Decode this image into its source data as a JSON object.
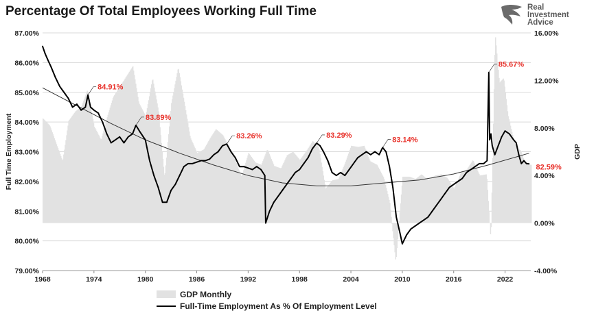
{
  "title": "Percentage Of Total Employees Working Full Time",
  "logo": {
    "line1": "Real",
    "line2": "Investment",
    "line3": "Advice"
  },
  "chart_data": {
    "type": "line",
    "title": "Percentage Of Total Employees Working Full Time",
    "ylabel": "Full Time Employment",
    "y2label": "GDP",
    "xlim": [
      1968,
      2025
    ],
    "ylim": [
      79,
      87
    ],
    "y2lim": [
      -4,
      16
    ],
    "x_ticks": [
      "1968",
      "1974",
      "1980",
      "1986",
      "1992",
      "1998",
      "2004",
      "2010",
      "2016",
      "2022"
    ],
    "y_ticks": [
      "79.00%",
      "80.00%",
      "81.00%",
      "82.00%",
      "83.00%",
      "84.00%",
      "85.00%",
      "86.00%",
      "87.00%"
    ],
    "y2_ticks": [
      "-4.00%",
      "0.00%",
      "4.00%",
      "8.00%",
      "12.00%",
      "16.00%"
    ],
    "legend": {
      "placement": "bottom",
      "entries": [
        "GDP Monthly",
        "Full-Time Employment As % Of Employment Level"
      ]
    },
    "grid": true,
    "series": [
      {
        "name": "Full-Time Employment As % Of Employment Level",
        "axis": "left",
        "color": "#000000",
        "x": [
          1968.0,
          1968.3,
          1968.6,
          1969.0,
          1969.5,
          1970.0,
          1970.5,
          1971.0,
          1971.5,
          1972.0,
          1972.5,
          1973.0,
          1973.3,
          1973.6,
          1974.0,
          1974.5,
          1975.0,
          1975.5,
          1976.0,
          1976.5,
          1977.0,
          1977.5,
          1978.0,
          1978.5,
          1978.9,
          1979.3,
          1980.0,
          1980.5,
          1981.0,
          1981.5,
          1982.0,
          1982.5,
          1983.0,
          1983.5,
          1984.0,
          1984.5,
          1985.0,
          1985.5,
          1986.0,
          1986.5,
          1987.0,
          1987.5,
          1988.0,
          1988.5,
          1989.0,
          1989.5,
          1990.0,
          1990.5,
          1991.0,
          1991.5,
          1992.0,
          1992.5,
          1993.0,
          1993.5,
          1993.95,
          1994.05,
          1994.5,
          1995.0,
          1995.5,
          1996.0,
          1996.5,
          1997.0,
          1997.5,
          1998.0,
          1998.5,
          1999.0,
          1999.5,
          2000.0,
          2000.4,
          2000.8,
          2001.3,
          2001.8,
          2002.3,
          2002.8,
          2003.3,
          2003.8,
          2004.3,
          2004.8,
          2005.3,
          2005.8,
          2006.3,
          2006.8,
          2007.3,
          2007.7,
          2008.1,
          2008.5,
          2008.9,
          2009.3,
          2009.7,
          2010.0,
          2010.5,
          2011.0,
          2011.5,
          2012.0,
          2012.5,
          2013.0,
          2013.5,
          2014.0,
          2014.5,
          2015.0,
          2015.5,
          2016.0,
          2016.5,
          2017.0,
          2017.5,
          2018.0,
          2018.5,
          2019.0,
          2019.5,
          2019.9,
          2020.1,
          2020.2,
          2020.35,
          2020.5,
          2020.8,
          2021.2,
          2021.6,
          2022.0,
          2022.5,
          2023.0,
          2023.3,
          2023.6,
          2023.9,
          2024.2,
          2024.5,
          2024.8
        ],
        "y": [
          86.55,
          86.3,
          86.1,
          85.85,
          85.5,
          85.2,
          85.0,
          84.8,
          84.5,
          84.6,
          84.4,
          84.5,
          84.91,
          84.5,
          84.4,
          84.3,
          84.0,
          83.6,
          83.3,
          83.4,
          83.5,
          83.3,
          83.5,
          83.6,
          83.89,
          83.7,
          83.4,
          82.7,
          82.2,
          81.8,
          81.3,
          81.3,
          81.7,
          81.9,
          82.2,
          82.5,
          82.6,
          82.6,
          82.65,
          82.7,
          82.7,
          82.75,
          82.9,
          83.0,
          83.2,
          83.26,
          83.0,
          82.8,
          82.5,
          82.5,
          82.45,
          82.4,
          82.5,
          82.4,
          82.2,
          80.6,
          81.0,
          81.3,
          81.5,
          81.7,
          81.9,
          82.1,
          82.3,
          82.4,
          82.6,
          82.8,
          83.1,
          83.29,
          83.2,
          83.0,
          82.7,
          82.3,
          82.2,
          82.3,
          82.2,
          82.4,
          82.6,
          82.8,
          82.9,
          83.0,
          82.9,
          83.0,
          82.9,
          83.14,
          83.0,
          82.5,
          81.8,
          80.8,
          80.3,
          79.9,
          80.2,
          80.4,
          80.5,
          80.6,
          80.7,
          80.8,
          81.0,
          81.2,
          81.4,
          81.6,
          81.8,
          81.9,
          82.0,
          82.1,
          82.3,
          82.4,
          82.5,
          82.6,
          82.6,
          82.7,
          85.67,
          83.4,
          83.6,
          83.2,
          82.9,
          83.2,
          83.5,
          83.7,
          83.6,
          83.4,
          83.3,
          82.9,
          82.6,
          82.7,
          82.6,
          82.59
        ]
      },
      {
        "name": "GDP Monthly",
        "axis": "right",
        "color": "#e2e2e2",
        "x": [
          1968.0,
          1968.8,
          1969.5,
          1970.3,
          1971.0,
          1971.8,
          1972.5,
          1973.2,
          1974.0,
          1974.8,
          1975.5,
          1976.2,
          1977.0,
          1977.8,
          1978.5,
          1979.2,
          1980.0,
          1980.8,
          1981.5,
          1982.2,
          1983.0,
          1983.8,
          1984.5,
          1985.2,
          1986.0,
          1986.8,
          1987.5,
          1988.2,
          1989.0,
          1989.8,
          1990.5,
          1991.2,
          1992.0,
          1992.8,
          1993.5,
          1994.2,
          1995.0,
          1995.8,
          1996.5,
          1997.2,
          1998.0,
          1998.8,
          1999.5,
          2000.2,
          2001.0,
          2001.8,
          2002.5,
          2003.2,
          2004.0,
          2004.8,
          2005.5,
          2006.2,
          2007.0,
          2007.8,
          2008.5,
          2009.2,
          2010.0,
          2010.8,
          2011.5,
          2012.2,
          2013.0,
          2013.8,
          2014.5,
          2015.2,
          2016.0,
          2016.8,
          2017.5,
          2018.2,
          2019.0,
          2019.8,
          2020.3,
          2020.8,
          2021.3,
          2021.8,
          2022.3,
          2022.8,
          2023.3,
          2023.8,
          2024.3,
          2024.8
        ],
        "y": [
          8.8,
          8.2,
          6.8,
          5.2,
          8.6,
          9.4,
          9.8,
          11.2,
          8.1,
          7.0,
          8.9,
          10.6,
          11.5,
          12.4,
          13.2,
          10.1,
          9.0,
          12.2,
          9.4,
          3.8,
          10.1,
          13.1,
          10.2,
          7.2,
          5.9,
          6.2,
          7.1,
          7.9,
          7.4,
          6.3,
          5.2,
          3.9,
          5.9,
          5.1,
          4.9,
          6.2,
          4.8,
          4.6,
          5.7,
          6.0,
          5.3,
          6.1,
          6.9,
          6.4,
          2.9,
          3.6,
          3.7,
          4.9,
          6.5,
          6.4,
          6.5,
          5.2,
          4.9,
          3.8,
          1.7,
          -3.3,
          3.9,
          3.9,
          3.7,
          4.1,
          3.6,
          4.0,
          4.1,
          3.8,
          2.9,
          4.2,
          4.5,
          5.3,
          4.0,
          4.1,
          -1.5,
          15.9,
          11.8,
          12.2,
          9.1,
          7.5,
          6.3,
          6.1,
          5.0,
          4.9
        ]
      },
      {
        "name": "Trend",
        "axis": "left",
        "color": "#333333",
        "x": [
          1968,
          1972,
          1976,
          1980,
          1984,
          1988,
          1992,
          1996,
          2000,
          2004,
          2008,
          2012,
          2016,
          2020,
          2024.8
        ],
        "y": [
          85.15,
          84.55,
          83.95,
          83.4,
          82.95,
          82.55,
          82.2,
          81.95,
          81.85,
          81.85,
          81.95,
          82.05,
          82.25,
          82.55,
          82.95
        ]
      }
    ],
    "annotations": [
      {
        "x": 1973.3,
        "y": 84.91,
        "text": "84.91%"
      },
      {
        "x": 1978.9,
        "y": 83.89,
        "text": "83.89%"
      },
      {
        "x": 1989.5,
        "y": 83.26,
        "text": "83.26%"
      },
      {
        "x": 2000.0,
        "y": 83.29,
        "text": "83.29%"
      },
      {
        "x": 2007.7,
        "y": 83.14,
        "text": "83.14%"
      },
      {
        "x": 2020.1,
        "y": 85.67,
        "text": "85.67%"
      },
      {
        "x": 2024.8,
        "y": 82.59,
        "text": "82.59%"
      }
    ]
  }
}
